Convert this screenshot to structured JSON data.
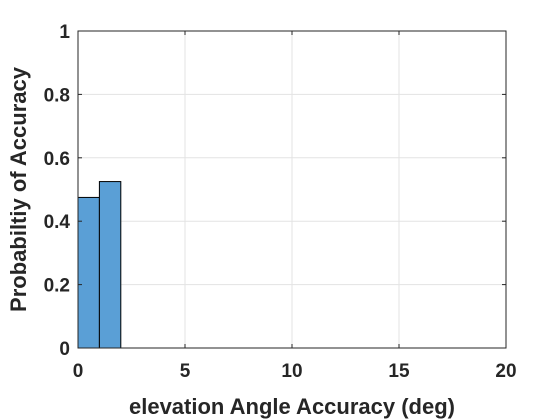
{
  "chart_data": {
    "type": "bar",
    "subtype": "histogram",
    "title": "",
    "xlabel": "elevation Angle Accuracy (deg)",
    "ylabel": "Probabiltiy of Accuracy",
    "xlim": [
      0,
      20
    ],
    "ylim": [
      0,
      1
    ],
    "x_ticks": [
      "0",
      "5",
      "10",
      "15",
      "20"
    ],
    "y_ticks": [
      "0",
      "0.2",
      "0.4",
      "0.6",
      "0.8",
      "1"
    ],
    "grid": true,
    "bins": [
      {
        "start": 0,
        "end": 1,
        "value": 0.475
      },
      {
        "start": 1,
        "end": 2,
        "value": 0.525
      }
    ],
    "colors": {
      "bar_fill": "#5a9fd6",
      "bar_edge": "#000000",
      "grid": "#e3e3e3",
      "axis": "#262626"
    }
  }
}
